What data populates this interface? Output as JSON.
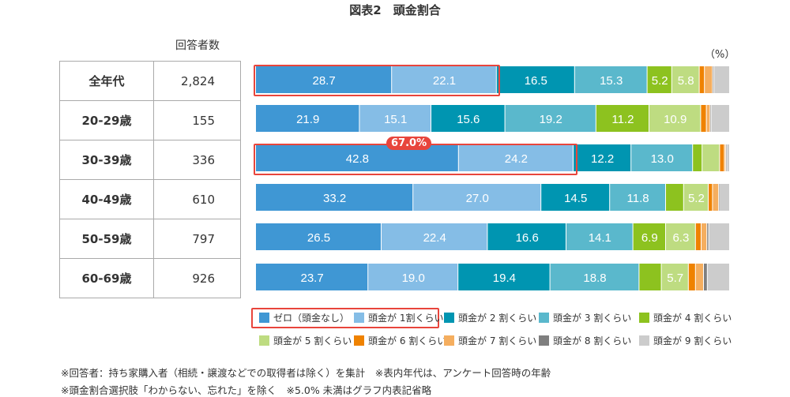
{
  "title": "図表2　頭金割合",
  "column_header": "回答者数",
  "unit": "（%）",
  "highlight_label": "67.0%",
  "notes": [
    "※回答者：持ち家購入者（相続・譲渡などでの取得者は除く）を集計　※表内年代は、アンケート回答時の年齢",
    "※頭金割合選択肢「わからない、忘れた」を除く　※5.0% 未満はグラフ内表記省略"
  ],
  "chart_data": {
    "type": "bar",
    "orientation": "horizontal",
    "stacked": true,
    "percent": true,
    "xlim": [
      0,
      100
    ],
    "categories": [
      "全年代",
      "20-29歳",
      "30-39歳",
      "40-49歳",
      "50-59歳",
      "60-69歳"
    ],
    "respondents": [
      "2,824",
      "155",
      "336",
      "610",
      "797",
      "926"
    ],
    "label_threshold": 5.0,
    "series": [
      {
        "name": "ゼロ（頭金なし）",
        "color": "#3f97d4",
        "values": [
          28.7,
          21.9,
          42.8,
          33.2,
          26.5,
          23.7
        ]
      },
      {
        "name": "頭金が 1割くらい",
        "color": "#85bde6",
        "values": [
          22.1,
          15.1,
          24.2,
          27.0,
          22.4,
          19.0
        ]
      },
      {
        "name": "頭金が 2 割くらい",
        "color": "#0095b1",
        "values": [
          16.5,
          15.6,
          12.2,
          14.5,
          16.6,
          19.4
        ]
      },
      {
        "name": "頭金が 3 割くらい",
        "color": "#5ab8cc",
        "values": [
          15.3,
          19.2,
          13.0,
          11.8,
          14.1,
          18.8
        ]
      },
      {
        "name": "頭金が 4 割くらい",
        "color": "#8dc21f",
        "values": [
          5.2,
          11.2,
          2.0,
          3.8,
          6.9,
          4.7
        ]
      },
      {
        "name": "頭金が 5 割くらい",
        "color": "#bedc81",
        "values": [
          5.8,
          10.9,
          3.7,
          5.2,
          6.3,
          5.7
        ]
      },
      {
        "name": "頭金が 6 割くらい",
        "color": "#ef8200",
        "values": [
          1.1,
          1.2,
          1.0,
          0.9,
          1.2,
          1.5
        ]
      },
      {
        "name": "頭金が 7 割くらい",
        "color": "#f5ae5f",
        "values": [
          1.7,
          0.8,
          0.3,
          1.3,
          1.2,
          1.7
        ]
      },
      {
        "name": "頭金が 8 割くらい",
        "color": "#7f7f7f",
        "values": [
          0.3,
          0.2,
          0.2,
          0.1,
          0.4,
          0.8
        ]
      },
      {
        "name": "頭金が 9 割くらい",
        "color": "#cccccc",
        "values": [
          3.3,
          3.9,
          0.6,
          2.2,
          4.4,
          4.7
        ]
      }
    ]
  }
}
